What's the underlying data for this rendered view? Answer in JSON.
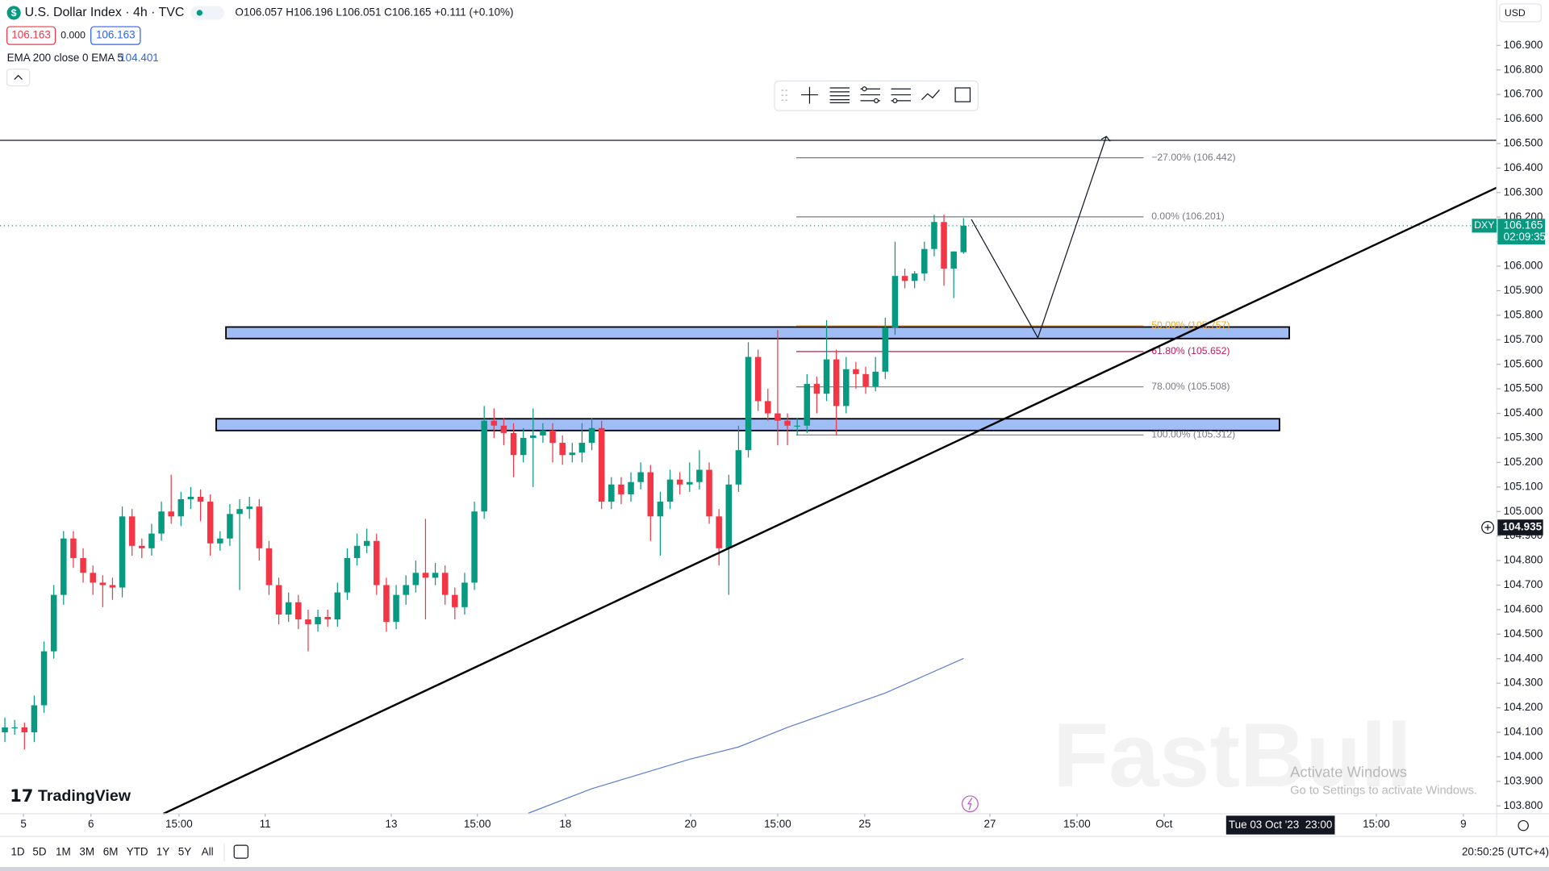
{
  "header": {
    "symbol_icon": "$",
    "title": "U.S. Dollar Index · 4h · TVC",
    "ohlc": "O106.057  H106.196  L106.051  C106.165  +0.111 (+0.10%)",
    "bid": "106.163",
    "spread": "0.000",
    "ask": "106.163",
    "indicator": "EMA 200 close 0 EMA 5",
    "indicator_value": "104.401"
  },
  "toolbar": {
    "timeframes": [
      "1D",
      "5D",
      "1M",
      "3M",
      "6M",
      "YTD",
      "1Y",
      "5Y",
      "All"
    ],
    "clock": "20:50:25 (UTC+4)"
  },
  "logo": "TradingView",
  "watermark": "FastBull",
  "os_notice": {
    "title": "Activate Windows",
    "text": "Go to Settings to activate Windows."
  },
  "currency": "USD",
  "chart_data": {
    "type": "candlestick",
    "up_color": "#089981",
    "down_color": "#f23645",
    "xlim": [
      -0.5,
      152.5
    ],
    "ylim": [
      103.768,
      107.085
    ],
    "xticks": [
      {
        "value": 1.9,
        "label": "5"
      },
      {
        "value": 8.8,
        "label": "6"
      },
      {
        "value": 17.8,
        "label": "15:00"
      },
      {
        "value": 26.6,
        "label": "11"
      },
      {
        "value": 39.5,
        "label": "13"
      },
      {
        "value": 48.3,
        "label": "15:00"
      },
      {
        "value": 57.3,
        "label": "18"
      },
      {
        "value": 70.1,
        "label": "20"
      },
      {
        "value": 79,
        "label": "15:00"
      },
      {
        "value": 87.9,
        "label": "25"
      },
      {
        "value": 100.7,
        "label": "27"
      },
      {
        "value": 109.6,
        "label": "15:00"
      },
      {
        "value": 118.5,
        "label": "Oct"
      },
      {
        "value": 140.2,
        "label": "15:00"
      },
      {
        "value": 149.1,
        "label": "9"
      }
    ],
    "yticks": [
      {
        "value": 103.8,
        "label": "103.800"
      },
      {
        "value": 103.9,
        "label": "103.900"
      },
      {
        "value": 104.0,
        "label": "104.000"
      },
      {
        "value": 104.1,
        "label": "104.100"
      },
      {
        "value": 104.2,
        "label": "104.200"
      },
      {
        "value": 104.3,
        "label": "104.300"
      },
      {
        "value": 104.4,
        "label": "104.400"
      },
      {
        "value": 104.5,
        "label": "104.500"
      },
      {
        "value": 104.6,
        "label": "104.600"
      },
      {
        "value": 104.7,
        "label": "104.700"
      },
      {
        "value": 104.8,
        "label": "104.800"
      },
      {
        "value": 104.9,
        "label": "104.900"
      },
      {
        "value": 105.0,
        "label": "105.000"
      },
      {
        "value": 105.1,
        "label": "105.100"
      },
      {
        "value": 105.2,
        "label": "105.200"
      },
      {
        "value": 105.3,
        "label": "105.300"
      },
      {
        "value": 105.4,
        "label": "105.400"
      },
      {
        "value": 105.5,
        "label": "105.500"
      },
      {
        "value": 105.6,
        "label": "105.600"
      },
      {
        "value": 105.7,
        "label": "105.700"
      },
      {
        "value": 105.8,
        "label": "105.800"
      },
      {
        "value": 105.9,
        "label": "105.900"
      },
      {
        "value": 106.0,
        "label": "106.000"
      },
      {
        "value": 106.1,
        "label": "106.100"
      },
      {
        "value": 106.2,
        "label": "106.200"
      },
      {
        "value": 106.3,
        "label": "106.300"
      },
      {
        "value": 106.4,
        "label": "106.400"
      },
      {
        "value": 106.5,
        "label": "106.500"
      },
      {
        "value": 106.6,
        "label": "106.600"
      },
      {
        "value": 106.7,
        "label": "106.700"
      },
      {
        "value": 106.8,
        "label": "106.800"
      },
      {
        "value": 106.9,
        "label": "106.900"
      }
    ],
    "ohlc": [
      [
        104.1,
        104.16,
        104.06,
        104.12
      ],
      [
        104.12,
        104.15,
        104.09,
        104.12
      ],
      [
        104.12,
        104.14,
        104.03,
        104.1
      ],
      [
        104.1,
        104.25,
        104.06,
        104.21
      ],
      [
        104.21,
        104.47,
        104.18,
        104.43
      ],
      [
        104.43,
        104.7,
        104.4,
        104.66
      ],
      [
        104.66,
        104.92,
        104.62,
        104.89
      ],
      [
        104.89,
        104.92,
        104.77,
        104.81
      ],
      [
        104.81,
        104.85,
        104.71,
        104.75
      ],
      [
        104.75,
        104.78,
        104.66,
        104.71
      ],
      [
        104.71,
        104.74,
        104.61,
        104.7
      ],
      [
        104.7,
        104.73,
        104.64,
        104.69
      ],
      [
        104.69,
        105.02,
        104.65,
        104.98
      ],
      [
        104.98,
        105.01,
        104.82,
        104.86
      ],
      [
        104.86,
        104.89,
        104.81,
        104.85
      ],
      [
        104.85,
        104.95,
        104.82,
        104.91
      ],
      [
        104.91,
        105.04,
        104.88,
        105.0
      ],
      [
        105.0,
        105.15,
        104.95,
        104.98
      ],
      [
        104.98,
        105.08,
        104.94,
        105.05
      ],
      [
        105.05,
        105.1,
        105.01,
        105.06
      ],
      [
        105.06,
        105.09,
        104.96,
        105.04
      ],
      [
        105.04,
        105.07,
        104.82,
        104.87
      ],
      [
        104.87,
        104.92,
        104.84,
        104.89
      ],
      [
        104.89,
        105.03,
        104.86,
        104.99
      ],
      [
        104.99,
        105.05,
        104.68,
        105.01
      ],
      [
        105.01,
        105.06,
        104.97,
        105.02
      ],
      [
        105.02,
        105.05,
        104.8,
        104.85
      ],
      [
        104.85,
        104.88,
        104.66,
        104.7
      ],
      [
        104.7,
        104.73,
        104.54,
        104.58
      ],
      [
        104.58,
        104.67,
        104.55,
        104.63
      ],
      [
        104.63,
        104.66,
        104.52,
        104.56
      ],
      [
        104.56,
        104.6,
        104.43,
        104.54
      ],
      [
        104.54,
        104.6,
        104.51,
        104.57
      ],
      [
        104.57,
        104.6,
        104.53,
        104.56
      ],
      [
        104.56,
        104.71,
        104.53,
        104.67
      ],
      [
        104.67,
        104.85,
        104.64,
        104.81
      ],
      [
        104.81,
        104.91,
        104.78,
        104.86
      ],
      [
        104.86,
        104.93,
        104.83,
        104.88
      ],
      [
        104.88,
        104.91,
        104.66,
        104.7
      ],
      [
        104.7,
        104.73,
        104.51,
        104.55
      ],
      [
        104.55,
        104.7,
        104.52,
        104.66
      ],
      [
        104.66,
        104.74,
        104.62,
        104.7
      ],
      [
        104.7,
        104.8,
        104.67,
        104.75
      ],
      [
        104.75,
        104.97,
        104.56,
        104.73
      ],
      [
        104.73,
        104.79,
        104.7,
        104.75
      ],
      [
        104.75,
        104.78,
        104.62,
        104.66
      ],
      [
        104.66,
        104.69,
        104.56,
        104.61
      ],
      [
        104.61,
        104.75,
        104.58,
        104.71
      ],
      [
        104.71,
        105.04,
        104.68,
        105.0
      ],
      [
        105.0,
        105.43,
        104.97,
        105.37
      ],
      [
        105.37,
        105.42,
        105.3,
        105.35
      ],
      [
        105.35,
        105.38,
        105.27,
        105.32
      ],
      [
        105.32,
        105.36,
        105.14,
        105.23
      ],
      [
        105.23,
        105.34,
        105.2,
        105.3
      ],
      [
        105.3,
        105.42,
        105.1,
        105.31
      ],
      [
        105.31,
        105.36,
        105.28,
        105.33
      ],
      [
        105.33,
        105.36,
        105.2,
        105.28
      ],
      [
        105.28,
        105.31,
        105.19,
        105.23
      ],
      [
        105.23,
        105.28,
        105.2,
        105.24
      ],
      [
        105.24,
        105.36,
        105.2,
        105.28
      ],
      [
        105.28,
        105.38,
        105.25,
        105.34
      ],
      [
        105.34,
        105.37,
        105.01,
        105.04
      ],
      [
        105.04,
        105.14,
        105.01,
        105.11
      ],
      [
        105.11,
        105.14,
        105.03,
        105.07
      ],
      [
        105.07,
        105.16,
        105.04,
        105.12
      ],
      [
        105.12,
        105.2,
        105.09,
        105.16
      ],
      [
        105.16,
        105.19,
        104.88,
        104.98
      ],
      [
        104.98,
        105.08,
        104.82,
        105.04
      ],
      [
        105.04,
        105.17,
        105.01,
        105.13
      ],
      [
        105.13,
        105.16,
        105.07,
        105.11
      ],
      [
        105.11,
        105.2,
        105.08,
        105.12
      ],
      [
        105.12,
        105.25,
        105.09,
        105.17
      ],
      [
        105.17,
        105.2,
        104.95,
        104.98
      ],
      [
        104.98,
        105.01,
        104.78,
        104.85
      ],
      [
        104.85,
        105.15,
        104.66,
        105.11
      ],
      [
        105.11,
        105.35,
        105.08,
        105.25
      ],
      [
        105.25,
        105.69,
        105.22,
        105.63
      ],
      [
        105.63,
        105.66,
        105.41,
        105.45
      ],
      [
        105.45,
        105.5,
        105.37,
        105.4
      ],
      [
        105.4,
        105.74,
        105.27,
        105.37
      ],
      [
        105.37,
        105.4,
        105.27,
        105.35
      ],
      [
        105.35,
        105.38,
        105.31,
        105.35
      ],
      [
        105.35,
        105.56,
        105.32,
        105.52
      ],
      [
        105.52,
        105.55,
        105.4,
        105.48
      ],
      [
        105.48,
        105.78,
        105.45,
        105.62
      ],
      [
        105.62,
        105.66,
        105.31,
        105.43
      ],
      [
        105.43,
        105.63,
        105.4,
        105.58
      ],
      [
        105.58,
        105.61,
        105.5,
        105.56
      ],
      [
        105.56,
        105.59,
        105.48,
        105.51
      ],
      [
        105.51,
        105.63,
        105.49,
        105.57
      ],
      [
        105.57,
        105.79,
        105.54,
        105.75
      ],
      [
        105.75,
        106.1,
        105.72,
        105.96
      ],
      [
        105.96,
        105.99,
        105.91,
        105.94
      ],
      [
        105.94,
        105.98,
        105.91,
        105.97
      ],
      [
        105.97,
        106.1,
        105.94,
        106.07
      ],
      [
        106.07,
        106.21,
        106.04,
        106.18
      ],
      [
        106.18,
        106.21,
        105.92,
        105.99
      ],
      [
        105.99,
        106.06,
        105.87,
        106.06
      ],
      [
        106.057,
        106.196,
        106.051,
        106.165
      ]
    ],
    "ema": {
      "color": "#5b7fd4",
      "x": [
        53.5,
        60,
        70,
        75,
        80,
        90,
        98
      ],
      "values": [
        103.77,
        103.87,
        103.99,
        104.04,
        104.12,
        104.26,
        104.401
      ]
    },
    "zones": [
      {
        "x": [
          22.6,
          131.3
        ],
        "values": [
          105.705,
          105.752
        ]
      },
      {
        "x": [
          21.6,
          130.3
        ],
        "values": [
          105.33,
          105.378
        ]
      }
    ],
    "zone_color": "#8fb1f5",
    "trendline": {
      "x": [
        16.2,
        152.5
      ],
      "values": [
        103.768,
        106.32
      ]
    },
    "hline": 106.513,
    "projection": {
      "x": [
        98.8,
        105.6,
        112.6
      ],
      "values": [
        106.191,
        105.708,
        106.529
      ]
    },
    "fib": {
      "x": [
        80.9,
        116.4
      ],
      "levels": [
        {
          "label": "−27.00% (106.442)",
          "value": 106.442,
          "color": "#787b86"
        },
        {
          "label": "0.00% (106.201)",
          "value": 106.201,
          "color": "#787b86"
        },
        {
          "label": "50.00% (105.757)",
          "value": 105.757,
          "color": "#f5a623"
        },
        {
          "label": "61.80% (105.652)",
          "value": 105.652,
          "color": "#c2185b"
        },
        {
          "label": "78.00% (105.508)",
          "value": 105.508,
          "color": "#787b86"
        },
        {
          "label": "100.00% (105.312)",
          "value": 105.312,
          "color": "#787b86"
        }
      ]
    },
    "last_price": 106.165,
    "countdown": "02:09:35",
    "symbol": "DXY",
    "crosshair": {
      "x": 130.4,
      "price": 104.935,
      "time_label": "Tue 03 Oct '23  23:00"
    }
  }
}
